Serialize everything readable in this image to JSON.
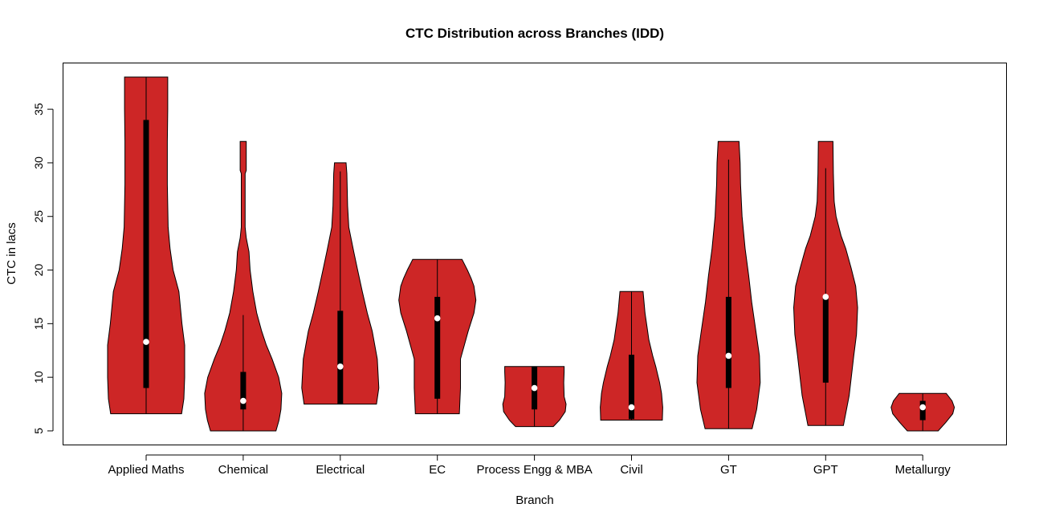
{
  "chart_data": {
    "type": "violin",
    "title": "CTC Distribution across Branches (IDD)",
    "xlabel": "Branch",
    "ylabel": "CTC in lacs",
    "ylim": [
      3.65,
      39.35
    ],
    "yticks": [
      5,
      10,
      15,
      20,
      25,
      30,
      35
    ],
    "grid": false,
    "fill_color": "#CD2626",
    "categories": [
      "Applied Maths",
      "Chemical",
      "Electrical",
      "EC",
      "Process Engg & MBA",
      "Civil",
      "GT",
      "GPT",
      "Metallurgy"
    ],
    "series": [
      {
        "category": "Applied Maths",
        "min": 6.6,
        "max": 38,
        "q1": 9,
        "median": 13.3,
        "q3": 34,
        "whisker_low": 6.6,
        "whisker_high": 38,
        "density": [
          [
            6.6,
            0.92
          ],
          [
            8,
            0.98
          ],
          [
            10,
            1.0
          ],
          [
            13,
            1.0
          ],
          [
            15,
            0.93
          ],
          [
            18,
            0.85
          ],
          [
            20,
            0.7
          ],
          [
            22,
            0.62
          ],
          [
            24,
            0.57
          ],
          [
            28,
            0.55
          ],
          [
            32,
            0.55
          ],
          [
            35,
            0.56
          ],
          [
            38,
            0.56
          ]
        ]
      },
      {
        "category": "Chemical",
        "min": 5,
        "max": 32,
        "q1": 7,
        "median": 7.8,
        "q3": 10.5,
        "whisker_low": 5,
        "whisker_high": 15.8,
        "density": [
          [
            5,
            0.85
          ],
          [
            6,
            0.93
          ],
          [
            7,
            0.98
          ],
          [
            8.5,
            1.0
          ],
          [
            10,
            0.92
          ],
          [
            11.7,
            0.75
          ],
          [
            13,
            0.6
          ],
          [
            14.3,
            0.48
          ],
          [
            16,
            0.35
          ],
          [
            18,
            0.25
          ],
          [
            20,
            0.18
          ],
          [
            21.7,
            0.15
          ],
          [
            23,
            0.08
          ],
          [
            24,
            0.05
          ],
          [
            29,
            0.05
          ],
          [
            29.3,
            0.08
          ],
          [
            32,
            0.08
          ]
        ]
      },
      {
        "category": "Electrical",
        "min": 7.5,
        "max": 30,
        "q1": 7.5,
        "median": 11,
        "q3": 16.2,
        "whisker_low": 7.5,
        "whisker_high": 29.2,
        "density": [
          [
            7.5,
            0.94
          ],
          [
            9,
            1.0
          ],
          [
            11.7,
            0.96
          ],
          [
            14.3,
            0.83
          ],
          [
            16,
            0.7
          ],
          [
            18,
            0.57
          ],
          [
            20,
            0.45
          ],
          [
            21.7,
            0.35
          ],
          [
            24,
            0.22
          ],
          [
            26,
            0.19
          ],
          [
            29,
            0.17
          ],
          [
            30,
            0.15
          ]
        ]
      },
      {
        "category": "EC",
        "min": 6.6,
        "max": 21,
        "q1": 8,
        "median": 15.5,
        "q3": 17.5,
        "whisker_low": 6.6,
        "whisker_high": 21,
        "density": [
          [
            6.6,
            0.57
          ],
          [
            9,
            0.6
          ],
          [
            11.7,
            0.6
          ],
          [
            13,
            0.7
          ],
          [
            14.3,
            0.8
          ],
          [
            16,
            0.95
          ],
          [
            17.2,
            1.0
          ],
          [
            18.5,
            0.95
          ],
          [
            19.2,
            0.88
          ],
          [
            20,
            0.78
          ],
          [
            21,
            0.64
          ]
        ]
      },
      {
        "category": "Process Engg & MBA",
        "min": 5.4,
        "max": 11,
        "q1": 7,
        "median": 9,
        "q3": 11,
        "whisker_low": 5.4,
        "whisker_high": 11,
        "density": [
          [
            5.4,
            0.49
          ],
          [
            6,
            0.65
          ],
          [
            6.8,
            0.8
          ],
          [
            7.5,
            0.82
          ],
          [
            8.2,
            0.77
          ],
          [
            9.5,
            0.76
          ],
          [
            10.5,
            0.77
          ],
          [
            11,
            0.77
          ]
        ]
      },
      {
        "category": "Civil",
        "min": 6,
        "max": 18,
        "q1": 6.1,
        "median": 7.2,
        "q3": 12.1,
        "whisker_low": 6,
        "whisker_high": 18,
        "density": [
          [
            6,
            0.8
          ],
          [
            7.2,
            0.81
          ],
          [
            8.5,
            0.78
          ],
          [
            9.5,
            0.73
          ],
          [
            11,
            0.63
          ],
          [
            12,
            0.55
          ],
          [
            13.5,
            0.45
          ],
          [
            14.5,
            0.41
          ],
          [
            16,
            0.35
          ],
          [
            18,
            0.3
          ]
        ]
      },
      {
        "category": "GT",
        "min": 5.2,
        "max": 32,
        "q1": 9,
        "median": 12,
        "q3": 17.5,
        "whisker_low": 5.2,
        "whisker_high": 30.3,
        "density": [
          [
            5.2,
            0.61
          ],
          [
            7,
            0.73
          ],
          [
            9.5,
            0.82
          ],
          [
            12,
            0.8
          ],
          [
            14,
            0.72
          ],
          [
            17,
            0.6
          ],
          [
            19.5,
            0.52
          ],
          [
            22,
            0.43
          ],
          [
            25,
            0.35
          ],
          [
            28,
            0.31
          ],
          [
            30,
            0.3
          ],
          [
            32,
            0.27
          ]
        ]
      },
      {
        "category": "GPT",
        "min": 5.5,
        "max": 32,
        "q1": 9.5,
        "median": 17.5,
        "q3": 17.5,
        "whisker_low": 5.5,
        "whisker_high": 29.5,
        "density": [
          [
            5.5,
            0.46
          ],
          [
            8.3,
            0.61
          ],
          [
            12,
            0.73
          ],
          [
            14,
            0.8
          ],
          [
            16.5,
            0.83
          ],
          [
            18.5,
            0.78
          ],
          [
            20.2,
            0.66
          ],
          [
            22,
            0.52
          ],
          [
            23.2,
            0.4
          ],
          [
            25,
            0.27
          ],
          [
            26.4,
            0.22
          ],
          [
            29,
            0.2
          ],
          [
            32,
            0.19
          ]
        ]
      },
      {
        "category": "Metallurgy",
        "min": 5,
        "max": 8.5,
        "q1": 6,
        "median": 7.2,
        "q3": 7.8,
        "whisker_low": 5,
        "whisker_high": 8.5,
        "density": [
          [
            5,
            0.4
          ],
          [
            5.8,
            0.6
          ],
          [
            6.6,
            0.78
          ],
          [
            7.2,
            0.82
          ],
          [
            7.8,
            0.76
          ],
          [
            8.5,
            0.61
          ]
        ]
      }
    ]
  }
}
